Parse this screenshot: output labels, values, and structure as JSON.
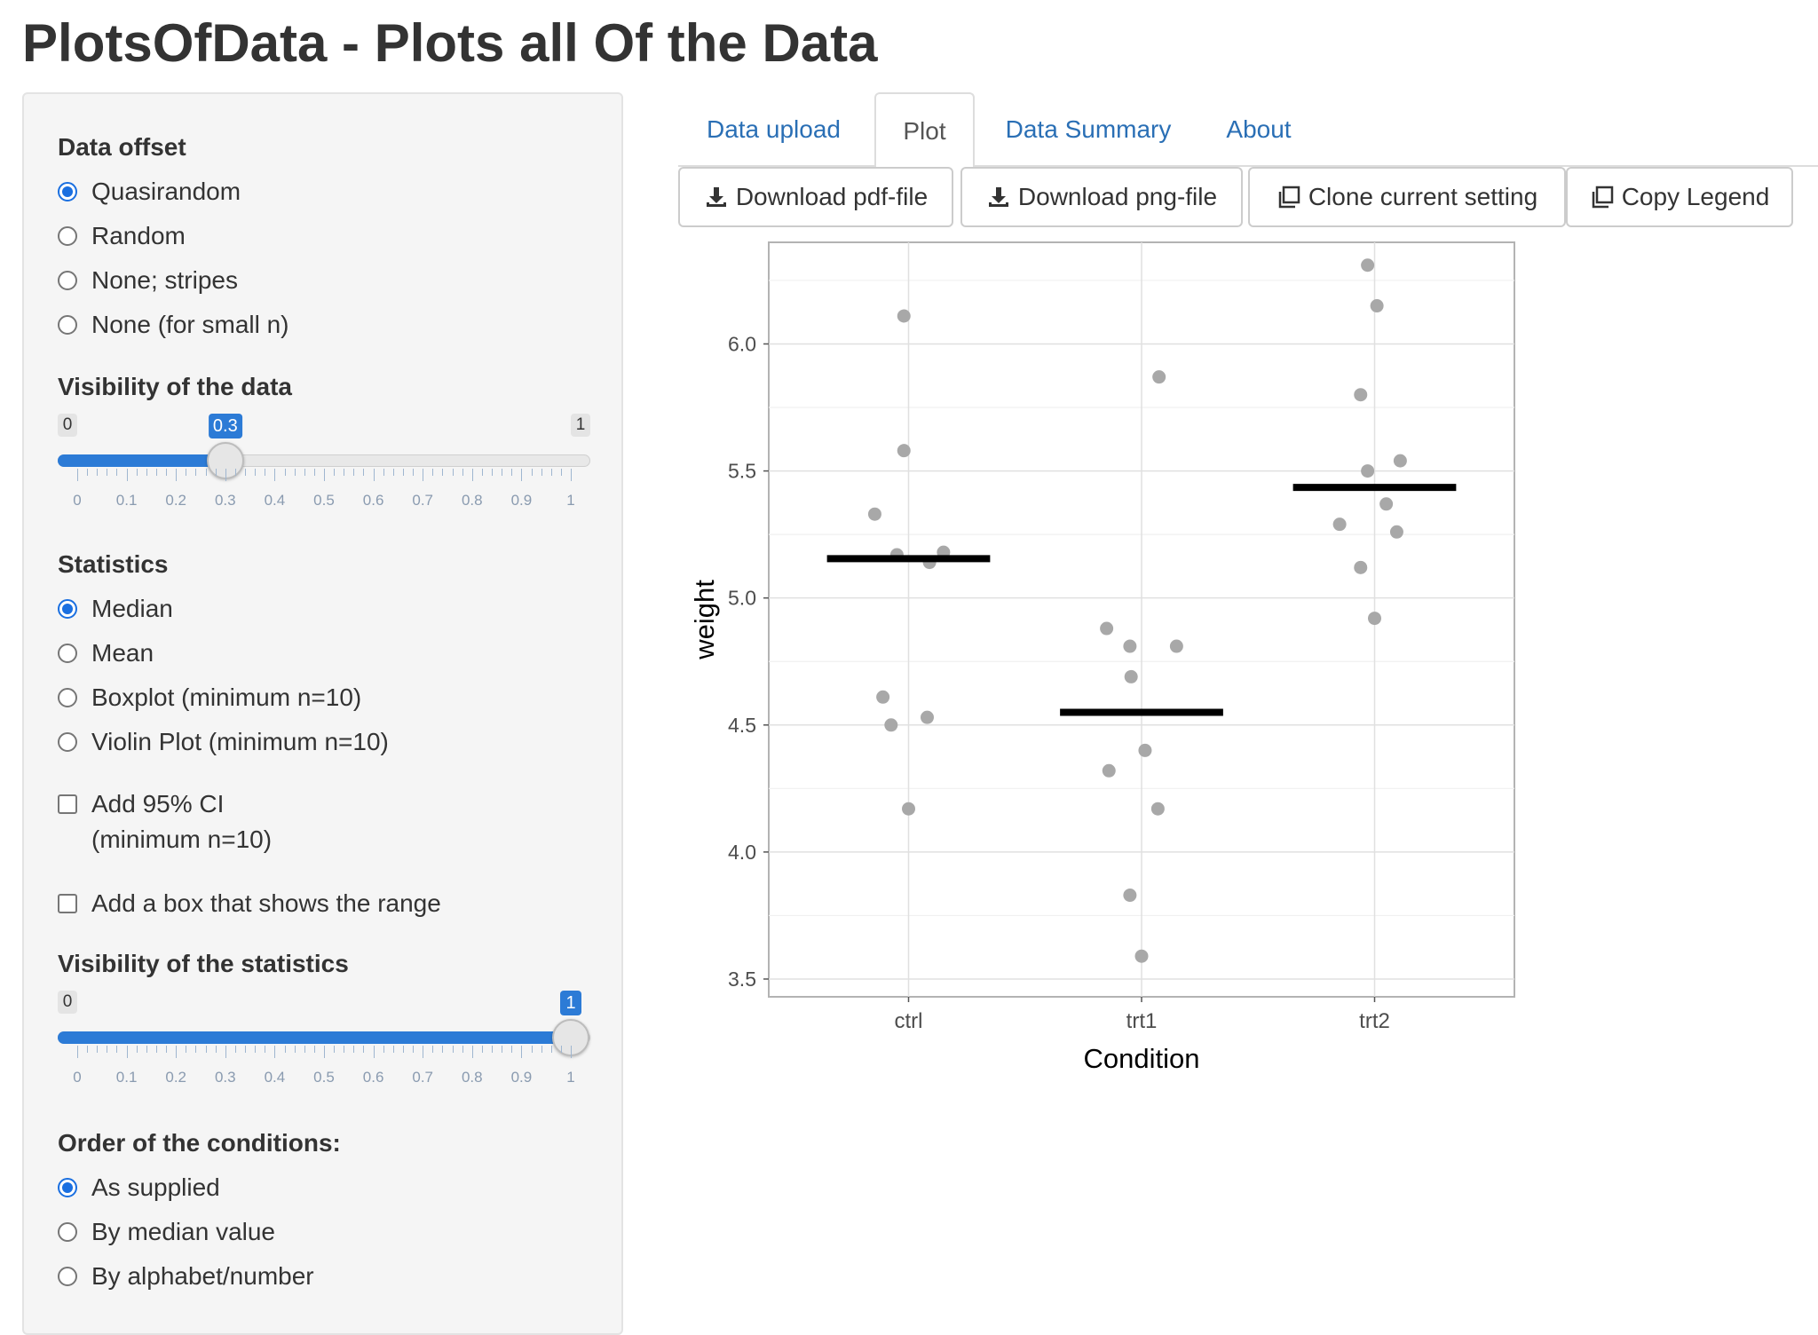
{
  "page": {
    "title": "PlotsOfData - Plots all Of the Data"
  },
  "sidebar": {
    "data_offset": {
      "label": "Data offset",
      "options": [
        "Quasirandom",
        "Random",
        "None; stripes",
        "None (for small n)"
      ],
      "selected": 0
    },
    "visibility_data": {
      "label": "Visibility of the data",
      "min": "0",
      "max": "1",
      "value": 0.3,
      "value_label": "0.3",
      "ticks": [
        "0",
        "0.1",
        "0.2",
        "0.3",
        "0.4",
        "0.5",
        "0.6",
        "0.7",
        "0.8",
        "0.9",
        "1"
      ]
    },
    "statistics": {
      "label": "Statistics",
      "options": [
        "Median",
        "Mean",
        "Boxplot (minimum n=10)",
        "Violin Plot (minimum n=10)"
      ],
      "selected": 0
    },
    "ci": {
      "line1": "Add 95% CI",
      "line2": "(minimum n=10)",
      "checked": false
    },
    "range_box": {
      "label": "Add a box that shows the range",
      "checked": false
    },
    "visibility_stats": {
      "label": "Visibility of the statistics",
      "min": "0",
      "max": "1",
      "value": 1,
      "value_label": "1",
      "ticks": [
        "0",
        "0.1",
        "0.2",
        "0.3",
        "0.4",
        "0.5",
        "0.6",
        "0.7",
        "0.8",
        "0.9",
        "1"
      ]
    },
    "order": {
      "label": "Order of the conditions:",
      "options": [
        "As supplied",
        "By median value",
        "By alphabet/number"
      ],
      "selected": 0
    }
  },
  "tabs": {
    "items": [
      "Data upload",
      "Plot",
      "Data Summary",
      "About"
    ],
    "active": 1
  },
  "buttons": {
    "download_pdf": "Download pdf-file",
    "download_png": "Download png-file",
    "clone": "Clone current setting",
    "copy_legend": "Copy Legend"
  },
  "colors": {
    "accent": "#2c7bd6",
    "link": "#2a6fb5",
    "point": "#a8a8a8",
    "median": "#000000"
  },
  "chart_data": {
    "type": "scatter",
    "xlabel": "Condition",
    "ylabel": "weight",
    "categories": [
      "ctrl",
      "trt1",
      "trt2"
    ],
    "ylim": [
      3.43,
      6.4
    ],
    "yticks": [
      "3.5",
      "4.0",
      "4.5",
      "5.0",
      "5.5",
      "6.0"
    ],
    "grid": true,
    "series": [
      {
        "category": "ctrl",
        "median": 5.155,
        "points": [
          [
            -0.29,
            5.33
          ],
          [
            -0.1,
            5.17
          ],
          [
            -0.22,
            4.61
          ],
          [
            0.18,
            5.14
          ],
          [
            -0.04,
            5.58
          ],
          [
            -0.15,
            4.5
          ],
          [
            -0.04,
            6.11
          ],
          [
            0.3,
            5.18
          ],
          [
            0.0,
            4.17
          ],
          [
            0.16,
            4.53
          ]
        ]
      },
      {
        "category": "trt1",
        "median": 4.55,
        "points": [
          [
            -0.1,
            4.81
          ],
          [
            -0.3,
            4.88
          ],
          [
            0.3,
            4.81
          ],
          [
            -0.09,
            4.69
          ],
          [
            0.03,
            4.4
          ],
          [
            -0.28,
            4.32
          ],
          [
            -0.1,
            3.83
          ],
          [
            0.0,
            3.59
          ],
          [
            0.14,
            4.17
          ],
          [
            0.15,
            5.87
          ]
        ]
      },
      {
        "category": "trt2",
        "median": 5.435,
        "points": [
          [
            -0.3,
            5.29
          ],
          [
            -0.12,
            5.12
          ],
          [
            0.0,
            4.92
          ],
          [
            0.19,
            5.26
          ],
          [
            0.1,
            5.37
          ],
          [
            -0.06,
            5.5
          ],
          [
            0.22,
            5.54
          ],
          [
            -0.12,
            5.8
          ],
          [
            -0.06,
            6.31
          ],
          [
            0.02,
            6.15
          ]
        ]
      }
    ]
  }
}
